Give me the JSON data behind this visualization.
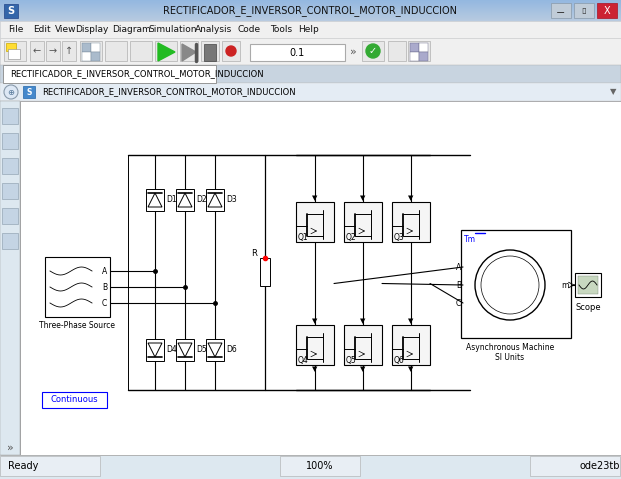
{
  "title_bar_text": "RECTIFICADOR_E_INVERSOR_CONTROL_MOTOR_INDUCCION",
  "menu_items": [
    "File",
    "Edit",
    "View",
    "Display",
    "Diagram",
    "Simulation",
    "Analysis",
    "Code",
    "Tools",
    "Help"
  ],
  "menu_x": [
    8,
    33,
    55,
    75,
    112,
    148,
    195,
    238,
    270,
    298
  ],
  "tab_text": "RECTIFICADOR_E_INVERSOR_CONTROL_MOTOR_INDUCCION",
  "breadcrumb_text": "RECTIFICADOR_E_INVERSOR_CONTROL_MOTOR_INDUCCION",
  "status_left": "Ready",
  "status_center": "100%",
  "status_right": "ode23tb",
  "sim_time": "0.1",
  "continuous_text": "Continuous",
  "three_phase_label": "Three-Phase Source",
  "scope_label": "Scope",
  "async_machine_label": "Asynchronous Machine\nSI Units",
  "highlight_color": "#0000ff",
  "diode_labels_top": [
    "D1",
    "D2",
    "D3"
  ],
  "diode_labels_bot": [
    "D4",
    "D5",
    "D6"
  ],
  "igbt_labels_top": [
    "Q1",
    "Q2",
    "Q3"
  ],
  "igbt_labels_bot": [
    "Q4",
    "Q5",
    "Q6"
  ]
}
